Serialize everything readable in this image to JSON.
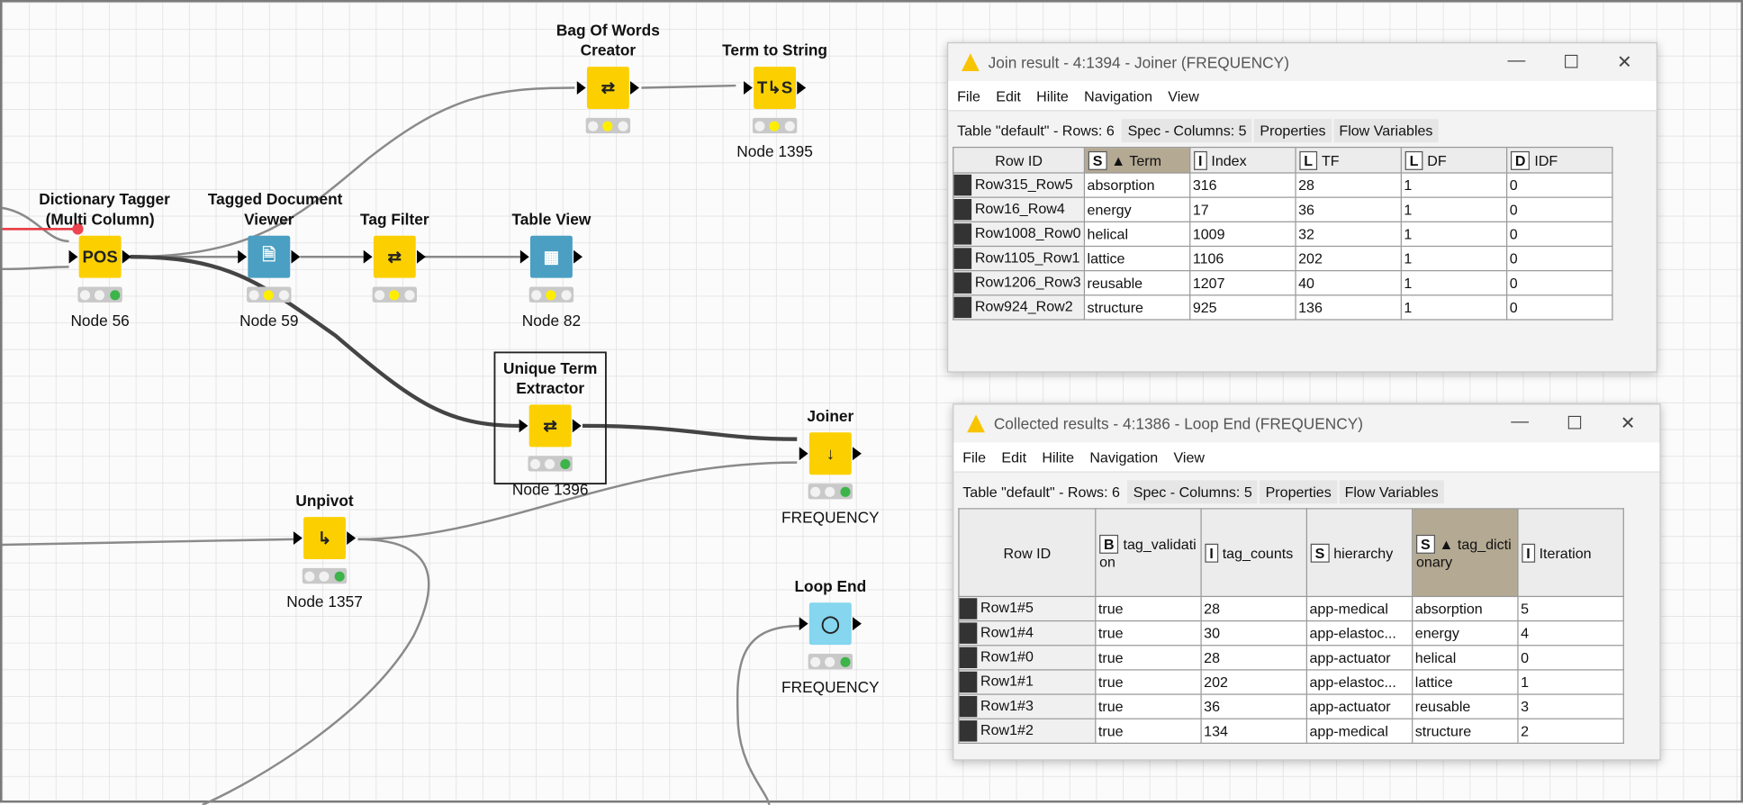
{
  "canvas": {
    "nodes": [
      {
        "id": "dict",
        "label": [
          "Dictionary Tagger",
          "(Multi Column)"
        ],
        "name": "Node 56",
        "icon": "pos-tagger-icon",
        "glyph": "POS",
        "color": "yellow",
        "lights": [
          "off",
          "off",
          "green"
        ]
      },
      {
        "id": "tdv",
        "label": [
          "Tagged Document",
          "Viewer"
        ],
        "name": "Node 59",
        "icon": "document-viewer-icon",
        "glyph": "🗎",
        "color": "blue",
        "lights": [
          "off",
          "yellow",
          "off"
        ]
      },
      {
        "id": "tf",
        "label": [
          "Tag Filter"
        ],
        "name": "",
        "icon": "document-transform-icon",
        "glyph": "⇄",
        "color": "yellow",
        "lights": [
          "off",
          "yellow",
          "off"
        ]
      },
      {
        "id": "tv",
        "label": [
          "Table View"
        ],
        "name": "Node 82",
        "icon": "table-icon",
        "glyph": "▦",
        "color": "blue",
        "lights": [
          "off",
          "yellow",
          "off"
        ]
      },
      {
        "id": "bow",
        "label": [
          "Bag Of Words",
          "Creator"
        ],
        "name": "",
        "icon": "document-transform-icon",
        "glyph": "⇄",
        "color": "yellow",
        "lights": [
          "off",
          "yellow",
          "off"
        ]
      },
      {
        "id": "tts",
        "label": [
          "Term to String"
        ],
        "name": "Node 1395",
        "icon": "term-to-string-icon",
        "glyph": "T↳S",
        "color": "yellow",
        "lights": [
          "off",
          "yellow",
          "off"
        ]
      },
      {
        "id": "ute",
        "label": [
          "Unique Term",
          "Extractor"
        ],
        "name": "Node 1396",
        "icon": "document-transform-icon",
        "glyph": "⇄",
        "color": "yellow",
        "lights": [
          "off",
          "off",
          "green"
        ]
      },
      {
        "id": "join",
        "label": [
          "Joiner"
        ],
        "name": "FREQUENCY",
        "icon": "joiner-icon",
        "glyph": "↓",
        "color": "yellow",
        "lights": [
          "off",
          "off",
          "green"
        ]
      },
      {
        "id": "unpivot",
        "label": [
          "Unpivot"
        ],
        "name": "Node 1357",
        "icon": "unpivot-icon",
        "glyph": "↳",
        "color": "yellow",
        "lights": [
          "off",
          "off",
          "green"
        ]
      },
      {
        "id": "loopend",
        "label": [
          "Loop End"
        ],
        "name": "FREQUENCY",
        "icon": "loop-end-icon",
        "glyph": "◯",
        "color": "lblue",
        "lights": [
          "off",
          "off",
          "green"
        ]
      }
    ]
  },
  "join_window": {
    "title": "Join result - 4:1394 - Joiner (FREQUENCY)",
    "menu": [
      "File",
      "Edit",
      "Hilite",
      "Navigation",
      "View"
    ],
    "tabs": [
      "Table \"default\" - Rows: 6",
      "Spec - Columns: 5",
      "Properties",
      "Flow Variables"
    ],
    "columns": [
      {
        "type": "",
        "name": "Row ID"
      },
      {
        "type": "S",
        "name": "▲ Term",
        "sorted": true
      },
      {
        "type": "I",
        "name": "Index"
      },
      {
        "type": "L",
        "name": "TF"
      },
      {
        "type": "L",
        "name": "DF"
      },
      {
        "type": "D",
        "name": "IDF"
      }
    ],
    "rows": [
      [
        "Row315_Row5",
        "absorption",
        "316",
        "28",
        "1",
        "0"
      ],
      [
        "Row16_Row4",
        "energy",
        "17",
        "36",
        "1",
        "0"
      ],
      [
        "Row1008_Row0",
        "helical",
        "1009",
        "32",
        "1",
        "0"
      ],
      [
        "Row1105_Row1",
        "lattice",
        "1106",
        "202",
        "1",
        "0"
      ],
      [
        "Row1206_Row3",
        "reusable",
        "1207",
        "40",
        "1",
        "0"
      ],
      [
        "Row924_Row2",
        "structure",
        "925",
        "136",
        "1",
        "0"
      ]
    ]
  },
  "loop_window": {
    "title": "Collected results - 4:1386 - Loop End (FREQUENCY)",
    "menu": [
      "File",
      "Edit",
      "Hilite",
      "Navigation",
      "View"
    ],
    "tabs": [
      "Table \"default\" - Rows: 6",
      "Spec - Columns: 5",
      "Properties",
      "Flow Variables"
    ],
    "columns": [
      {
        "type": "",
        "name": "Row ID"
      },
      {
        "type": "B",
        "name": "tag_validation"
      },
      {
        "type": "I",
        "name": "tag_counts"
      },
      {
        "type": "S",
        "name": "hierarchy"
      },
      {
        "type": "S",
        "name": "▲ tag_dictionary",
        "sorted": true
      },
      {
        "type": "I",
        "name": "Iteration"
      }
    ],
    "rows": [
      [
        "Row1#5",
        "true",
        "28",
        "app-medical",
        "absorption",
        "5"
      ],
      [
        "Row1#4",
        "true",
        "30",
        "app-elastoc...",
        "energy",
        "4"
      ],
      [
        "Row1#0",
        "true",
        "28",
        "app-actuator",
        "helical",
        "0"
      ],
      [
        "Row1#1",
        "true",
        "202",
        "app-elastoc...",
        "lattice",
        "1"
      ],
      [
        "Row1#3",
        "true",
        "36",
        "app-actuator",
        "reusable",
        "3"
      ],
      [
        "Row1#2",
        "true",
        "134",
        "app-medical",
        "structure",
        "2"
      ]
    ]
  },
  "window_controls": {
    "minimize": "—",
    "maximize": "☐",
    "close": "✕"
  }
}
